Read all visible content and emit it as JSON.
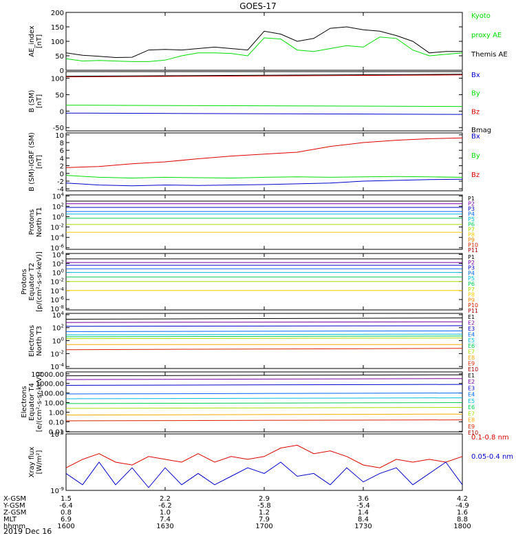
{
  "title": "GOES-17",
  "chart_data": [
    {
      "id": "ae",
      "type": "line",
      "ylabel": [
        "AE_index",
        "[nT]"
      ],
      "yticks": [
        "200",
        "150",
        "100",
        "50",
        "0"
      ],
      "ylim": [
        0,
        200
      ],
      "scale": "linear",
      "x": [
        0,
        5,
        10,
        15,
        20,
        25,
        30,
        35,
        40,
        45,
        50,
        55,
        60,
        65,
        70,
        75,
        80,
        85,
        90,
        95,
        100,
        105,
        110,
        115,
        120
      ],
      "series": [
        {
          "name": "Kyoto proxy AE",
          "color": "#00dd00",
          "values": [
            40,
            32,
            34,
            32,
            30,
            30,
            35,
            50,
            60,
            60,
            58,
            50,
            112,
            108,
            70,
            65,
            75,
            85,
            80,
            115,
            110,
            70,
            50,
            55,
            60
          ]
        },
        {
          "name": "Themis AE",
          "color": "#000000",
          "values": [
            60,
            52,
            48,
            44,
            45,
            70,
            72,
            70,
            75,
            80,
            75,
            70,
            135,
            125,
            100,
            110,
            145,
            150,
            140,
            135,
            120,
            100,
            60,
            65,
            65
          ]
        }
      ],
      "legend": [
        {
          "label": "Kyoto",
          "color": "#00dd00"
        },
        {
          "label": "proxy AE",
          "color": "#00dd00"
        },
        {
          "label": "Themis AE",
          "color": "#000000"
        }
      ]
    },
    {
      "id": "bsm",
      "type": "line",
      "ylabel": [
        "B (SM)",
        "[nT]"
      ],
      "yticks": [
        "100",
        "50",
        "0",
        "-50"
      ],
      "ylim": [
        -60,
        120
      ],
      "scale": "linear",
      "x": [
        0,
        120
      ],
      "series": [
        {
          "name": "Bx",
          "color": "#0000cc",
          "values": [
            -6,
            -10
          ]
        },
        {
          "name": "By",
          "color": "#00dd00",
          "values": [
            18,
            14
          ]
        },
        {
          "name": "Bz",
          "color": "#dd0000",
          "values": [
            104,
            110
          ]
        },
        {
          "name": "Bmag",
          "color": "#000000",
          "values": [
            106,
            112
          ]
        }
      ],
      "legend": [
        {
          "label": "Bx",
          "color": "#0000cc"
        },
        {
          "label": "By",
          "color": "#00dd00"
        },
        {
          "label": "Bz",
          "color": "#dd0000"
        },
        {
          "label": "Bmag",
          "color": "#000000"
        }
      ]
    },
    {
      "id": "bigrf",
      "type": "line",
      "ylabel": [
        "B (SM)-IGRF (SM)",
        "[nT]"
      ],
      "yticks": [
        "10",
        "8",
        "6",
        "4",
        "2",
        "0",
        "-2",
        "-4"
      ],
      "ylim": [
        -4.5,
        10.5
      ],
      "scale": "linear",
      "x": [
        0,
        10,
        20,
        30,
        40,
        50,
        60,
        70,
        80,
        90,
        100,
        110,
        120
      ],
      "series": [
        {
          "name": "Bx",
          "color": "#0000cc",
          "values": [
            -2.5,
            -3.0,
            -3.2,
            -3.0,
            -3.1,
            -3.0,
            -2.9,
            -2.7,
            -2.5,
            -2.0,
            -1.8,
            -1.6,
            -1.5
          ]
        },
        {
          "name": "By",
          "color": "#00dd00",
          "values": [
            -0.5,
            -1.0,
            -1.2,
            -1.0,
            -1.1,
            -1.2,
            -1.0,
            -0.9,
            -1.0,
            -0.9,
            -0.8,
            -0.9,
            -1.0
          ]
        },
        {
          "name": "Bz",
          "color": "#dd0000",
          "values": [
            1.5,
            1.8,
            2.5,
            3.0,
            3.8,
            4.5,
            5.0,
            5.5,
            7.0,
            8.0,
            8.6,
            9.0,
            9.2
          ]
        }
      ],
      "legend": [
        {
          "label": "Bx",
          "color": "#0000cc"
        },
        {
          "label": "By",
          "color": "#00dd00"
        },
        {
          "label": "Bz",
          "color": "#dd0000"
        }
      ]
    },
    {
      "id": "pt1",
      "type": "line",
      "scale": "log",
      "ylabel": [
        "Protons",
        "North T1"
      ],
      "yticks": [
        "10^4",
        "10^2",
        "10^0",
        "10^-2",
        "10^-4",
        "10^-6"
      ],
      "ylim": [
        -6.3,
        4.2
      ],
      "x": [
        0,
        120
      ],
      "series": [
        {
          "name": "P1",
          "color": "#000000",
          "values": [
            3.0,
            3.0
          ]
        },
        {
          "name": "P2",
          "color": "#7700aa",
          "values": [
            2.5,
            2.5
          ]
        },
        {
          "name": "P3",
          "color": "#0000cc",
          "values": [
            1.8,
            1.8
          ]
        },
        {
          "name": "P4",
          "color": "#0066ff",
          "values": [
            1.0,
            1.0
          ]
        },
        {
          "name": "P5",
          "color": "#00bbdd",
          "values": [
            0.5,
            0.5
          ]
        },
        {
          "name": "P6",
          "color": "#00cc55",
          "values": [
            -0.3,
            -0.3
          ]
        },
        {
          "name": "P7",
          "color": "#aadd00",
          "values": [
            -1.5,
            -1.5
          ]
        },
        {
          "name": "P8",
          "color": "#ffcc00",
          "values": [
            -3.0,
            -3.0
          ]
        }
      ],
      "legend": [
        {
          "label": "P1",
          "color": "#000000"
        },
        {
          "label": "P2",
          "color": "#7700aa"
        },
        {
          "label": "P3",
          "color": "#0000cc"
        },
        {
          "label": "P4",
          "color": "#0066ff"
        },
        {
          "label": "P5",
          "color": "#00bbdd"
        },
        {
          "label": "P6",
          "color": "#00cc55"
        },
        {
          "label": "P7",
          "color": "#aadd00"
        },
        {
          "label": "P8",
          "color": "#ffcc00"
        },
        {
          "label": "P9",
          "color": "#ff8800"
        },
        {
          "label": "P10",
          "color": "#dd2200"
        },
        {
          "label": "P11",
          "color": "#aa0000"
        }
      ]
    },
    {
      "id": "pt2",
      "type": "line",
      "scale": "log",
      "ylabel": [
        "Protons",
        "Equator T2",
        "[p/(cm²-s-sr-keV)]"
      ],
      "yticks": [
        "10^4",
        "10^2",
        "10^0",
        "10^-2",
        "10^-4",
        "10^-6",
        "10^-8"
      ],
      "ylim": [
        -8.3,
        4.2
      ],
      "x": [
        0,
        120
      ],
      "series": [
        {
          "name": "P1",
          "color": "#000000",
          "values": [
            3.0,
            3.0
          ]
        },
        {
          "name": "P2",
          "color": "#7700aa",
          "values": [
            2.2,
            2.2
          ]
        },
        {
          "name": "P3",
          "color": "#0000cc",
          "values": [
            1.6,
            1.6
          ]
        },
        {
          "name": "P4",
          "color": "#0066ff",
          "values": [
            0.8,
            0.8
          ]
        },
        {
          "name": "P5",
          "color": "#00bbdd",
          "values": [
            0.0,
            0.0
          ]
        },
        {
          "name": "P6",
          "color": "#00cc55",
          "values": [
            -1.0,
            -1.0
          ]
        },
        {
          "name": "P7",
          "color": "#aadd00",
          "values": [
            -2.0,
            -2.0
          ]
        },
        {
          "name": "P8",
          "color": "#ffcc00",
          "values": [
            -4.0,
            -4.0
          ]
        }
      ],
      "legend": [
        {
          "label": "P1",
          "color": "#000000"
        },
        {
          "label": "P2",
          "color": "#7700aa"
        },
        {
          "label": "P3",
          "color": "#0000cc"
        },
        {
          "label": "P4",
          "color": "#0066ff"
        },
        {
          "label": "P5",
          "color": "#00bbdd"
        },
        {
          "label": "P6",
          "color": "#00cc55"
        },
        {
          "label": "P7",
          "color": "#aadd00"
        },
        {
          "label": "P8",
          "color": "#ffcc00"
        },
        {
          "label": "P9",
          "color": "#ff8800"
        },
        {
          "label": "P10",
          "color": "#dd2200"
        },
        {
          "label": "P11",
          "color": "#aa0000"
        }
      ]
    },
    {
      "id": "et3",
      "type": "line",
      "scale": "log",
      "ylabel": [
        "Electrons",
        "North T3"
      ],
      "yticks": [
        "10^4",
        "10^2",
        "10^0",
        "10^-2",
        "10^-4"
      ],
      "ylim": [
        -4.3,
        4.2
      ],
      "x": [
        0,
        120
      ],
      "series": [
        {
          "name": "E1",
          "color": "#000000",
          "values": [
            3.3,
            3.5
          ]
        },
        {
          "name": "E2",
          "color": "#7700aa",
          "values": [
            2.8,
            2.9
          ]
        },
        {
          "name": "E3",
          "color": "#0000cc",
          "values": [
            2.2,
            2.3
          ]
        },
        {
          "name": "E4",
          "color": "#0066ff",
          "values": [
            1.4,
            1.5
          ]
        },
        {
          "name": "E5",
          "color": "#00bbdd",
          "values": [
            0.9,
            1.0
          ]
        },
        {
          "name": "E6",
          "color": "#00cc55",
          "values": [
            0.6,
            0.7
          ]
        },
        {
          "name": "E7",
          "color": "#aadd00",
          "values": [
            0.3,
            0.4
          ]
        },
        {
          "name": "E8",
          "color": "#ffaa00",
          "values": [
            -0.6,
            -0.6
          ]
        },
        {
          "name": "E9",
          "color": "#dd2200",
          "values": [
            -1.4,
            -1.2
          ]
        }
      ],
      "legend": [
        {
          "label": "E1",
          "color": "#000000"
        },
        {
          "label": "E2",
          "color": "#7700aa"
        },
        {
          "label": "E3",
          "color": "#0000cc"
        },
        {
          "label": "E4",
          "color": "#0066ff"
        },
        {
          "label": "E5",
          "color": "#00bbdd"
        },
        {
          "label": "E6",
          "color": "#00cc55"
        },
        {
          "label": "E7",
          "color": "#aadd00"
        },
        {
          "label": "E8",
          "color": "#ffaa00"
        },
        {
          "label": "E9",
          "color": "#dd2200"
        },
        {
          "label": "E10",
          "color": "#aa0000"
        }
      ]
    },
    {
      "id": "et4",
      "type": "line",
      "scale": "log",
      "ylabel": [
        "Electrons",
        "Equator T4",
        "[e/(cm²-s-sr-keV)]"
      ],
      "yticks": [
        "10000.00",
        "1000.00",
        "100.00",
        "10.00",
        "1.00",
        "0.10",
        "0.01"
      ],
      "ylim": [
        -2.05,
        4.2
      ],
      "x": [
        0,
        120
      ],
      "series": [
        {
          "name": "E1",
          "color": "#000000",
          "values": [
            3.8,
            3.9
          ]
        },
        {
          "name": "E2",
          "color": "#7700aa",
          "values": [
            3.4,
            3.5
          ]
        },
        {
          "name": "E3",
          "color": "#0000cc",
          "values": [
            2.8,
            2.9
          ]
        },
        {
          "name": "E4",
          "color": "#0066ff",
          "values": [
            1.9,
            2.0
          ]
        },
        {
          "name": "E5",
          "color": "#00bbdd",
          "values": [
            1.4,
            1.5
          ]
        },
        {
          "name": "E6",
          "color": "#00cc55",
          "values": [
            0.9,
            1.0
          ]
        },
        {
          "name": "E7",
          "color": "#aadd00",
          "values": [
            0.4,
            0.5
          ]
        },
        {
          "name": "E8",
          "color": "#ffaa00",
          "values": [
            -0.3,
            -0.2
          ]
        },
        {
          "name": "E9",
          "color": "#dd2200",
          "values": [
            -0.9,
            -0.8
          ]
        }
      ],
      "legend": [
        {
          "label": "E1",
          "color": "#000000"
        },
        {
          "label": "E2",
          "color": "#7700aa"
        },
        {
          "label": "E3",
          "color": "#0000cc"
        },
        {
          "label": "E4",
          "color": "#0066ff"
        },
        {
          "label": "E5",
          "color": "#00bbdd"
        },
        {
          "label": "E6",
          "color": "#00cc55"
        },
        {
          "label": "E7",
          "color": "#aadd00"
        },
        {
          "label": "E8",
          "color": "#ffaa00"
        },
        {
          "label": "E9",
          "color": "#dd2200"
        },
        {
          "label": "E10",
          "color": "#aa0000"
        }
      ]
    },
    {
      "id": "xray",
      "type": "line",
      "scale": "log",
      "ylabel": [
        "Xray flux",
        "[W/m²]"
      ],
      "yticks": [
        "10^-8",
        "10^-9"
      ],
      "ylim": [
        -9.0,
        -8.0
      ],
      "x": [
        0,
        5,
        10,
        15,
        20,
        25,
        30,
        35,
        40,
        45,
        50,
        55,
        60,
        65,
        70,
        75,
        80,
        85,
        90,
        95,
        100,
        105,
        110,
        115,
        120
      ],
      "series": [
        {
          "name": "0.1-0.8 nm",
          "color": "#dd0000",
          "values": [
            -8.6,
            -8.45,
            -8.35,
            -8.5,
            -8.55,
            -8.4,
            -8.45,
            -8.5,
            -8.35,
            -8.5,
            -8.4,
            -8.45,
            -8.4,
            -8.25,
            -8.2,
            -8.35,
            -8.3,
            -8.4,
            -8.55,
            -8.6,
            -8.45,
            -8.5,
            -8.45,
            -8.5,
            -8.4
          ]
        },
        {
          "name": "0.05-0.4 nm",
          "color": "#0000cc",
          "values": [
            -8.7,
            -8.9,
            -8.5,
            -8.9,
            -8.6,
            -8.95,
            -8.6,
            -8.9,
            -8.7,
            -8.9,
            -8.75,
            -8.6,
            -8.7,
            -8.5,
            -8.75,
            -8.7,
            -8.9,
            -8.6,
            -8.85,
            -8.7,
            -8.6,
            -8.9,
            -8.7,
            -8.5,
            -8.9
          ]
        }
      ],
      "legend": [
        {
          "label": "0.1-0.8 nm",
          "color": "#dd0000"
        },
        {
          "label": "0.05-0.4 nm",
          "color": "#0000cc"
        }
      ]
    }
  ],
  "xaxis": {
    "ticks": [
      0,
      30,
      60,
      90,
      120
    ],
    "rows": [
      {
        "name": "X-GSM",
        "values": [
          "1.5",
          "2.2",
          "2.9",
          "3.6",
          "4.2"
        ]
      },
      {
        "name": "Y-GSM",
        "values": [
          "-6.4",
          "-6.2",
          "-5.8",
          "-5.4",
          "-4.9"
        ]
      },
      {
        "name": "Z-GSM",
        "values": [
          "0.8",
          "1.0",
          "1.2",
          "1.4",
          "1.6"
        ]
      },
      {
        "name": "MLT",
        "values": [
          "6.9",
          "7.4",
          "7.9",
          "8.4",
          "8.8"
        ]
      },
      {
        "name": "hhmm",
        "values": [
          "1600",
          "1630",
          "1700",
          "1730",
          "1800"
        ]
      }
    ],
    "date": "2019 Dec 16"
  }
}
